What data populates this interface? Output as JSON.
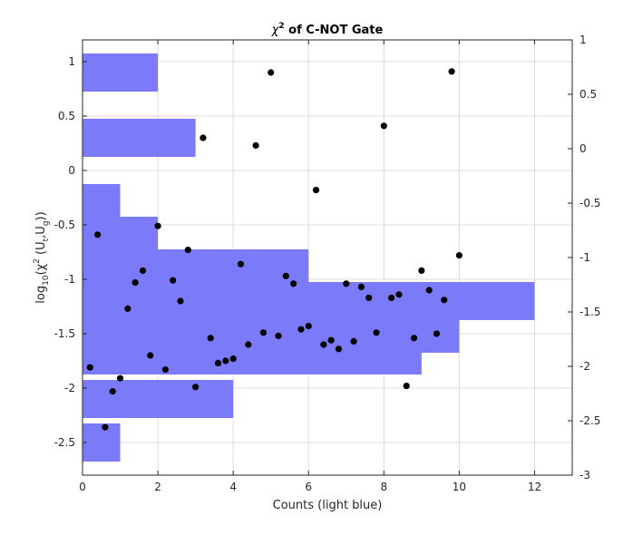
{
  "chart_data": {
    "type": "bar",
    "title": "χ² of C-NOT Gate",
    "title_parts": {
      "symbol": "χ",
      "superscript": "2",
      "rest": " of C-NOT Gate"
    },
    "xlabel": "Counts (light blue)",
    "ylabel_parts": {
      "pre": "log",
      "sub1": "10",
      "mid": "(χ",
      "sup": "2",
      "open": " (U",
      "sub2": "t",
      "comma": ",U",
      "sub3": "g",
      "close": "))"
    },
    "xlim": [
      0,
      13
    ],
    "ylim": [
      -2.8,
      1.2
    ],
    "right_ylim": [
      -3,
      1
    ],
    "grid": true,
    "colors": {
      "bars": "#7b7bfa",
      "points": "#000000",
      "grid": "#dcdcdc",
      "axis": "#262626"
    },
    "xticks": [
      0,
      2,
      4,
      6,
      8,
      10,
      12
    ],
    "yticks": [
      -2.5,
      -2,
      -1.5,
      -1,
      -0.5,
      0,
      0.5,
      1
    ],
    "right_yticks": [
      -3,
      -2.5,
      -2,
      -1.5,
      -1,
      -0.5,
      0,
      0.5,
      1
    ],
    "histogram": {
      "bin_width": 0.4,
      "bins": [
        {
          "center": -2.5,
          "count": 1
        },
        {
          "center": -2.1,
          "count": 4
        },
        {
          "center": -1.7,
          "count": 9
        },
        {
          "center": -1.5,
          "count": 10
        },
        {
          "center": -1.2,
          "count": 12
        },
        {
          "center": -0.9,
          "count": 6
        },
        {
          "center": -0.6,
          "count": 2
        },
        {
          "center": -0.3,
          "count": 1
        },
        {
          "center": 0.3,
          "count": 3
        },
        {
          "center": 0.9,
          "count": 2
        }
      ]
    },
    "scatter": {
      "x": [
        0.2,
        0.4,
        0.6,
        0.8,
        1.0,
        1.2,
        1.4,
        1.6,
        1.8,
        2.0,
        2.2,
        2.4,
        2.6,
        2.8,
        3.0,
        3.2,
        3.4,
        3.6,
        3.8,
        4.0,
        4.2,
        4.4,
        4.6,
        4.8,
        5.0,
        5.2,
        5.4,
        5.6,
        5.8,
        6.0,
        6.2,
        6.4,
        6.6,
        6.8,
        7.0,
        7.2,
        7.4,
        7.6,
        7.8,
        8.0,
        8.2,
        8.4,
        8.6,
        8.8,
        9.0,
        9.2,
        9.4,
        9.6,
        9.8,
        10.0
      ],
      "y": [
        -1.81,
        -0.59,
        -2.36,
        -2.03,
        -1.91,
        -1.27,
        -1.03,
        -0.92,
        -1.7,
        -0.51,
        -1.83,
        -1.01,
        -1.2,
        -0.73,
        -1.99,
        0.3,
        -1.54,
        -1.77,
        -1.75,
        -1.73,
        -0.86,
        -1.6,
        0.23,
        -1.49,
        0.9,
        -1.52,
        -0.97,
        -1.04,
        -1.46,
        -1.43,
        -0.18,
        -1.6,
        -1.56,
        -1.64,
        -1.04,
        -1.57,
        -1.07,
        -1.17,
        -1.49,
        0.41,
        -1.17,
        -1.14,
        -1.98,
        -1.54,
        -0.92,
        -1.1,
        -1.5,
        -1.19,
        0.91,
        -0.78
      ]
    }
  }
}
